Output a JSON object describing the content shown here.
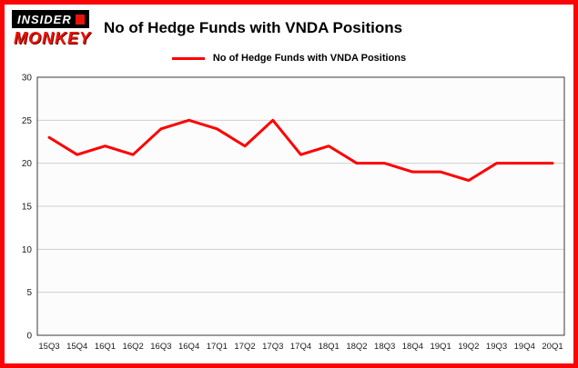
{
  "page": {
    "border_color": "#f90505",
    "background": "#ffffff"
  },
  "logo": {
    "line1": "INSIDER",
    "line2": "MONKEY",
    "bg_color": "#000000",
    "accent_color": "#e8140c",
    "monkey_color": "#ef1409"
  },
  "header": {
    "title": "No of Hedge Funds with VNDA Positions"
  },
  "legend": {
    "label": "No of Hedge Funds with VNDA Positions",
    "line_color": "#fe0000"
  },
  "chart_data": {
    "type": "line",
    "title": "No of Hedge Funds with VNDA Positions",
    "categories": [
      "15Q3",
      "15Q4",
      "16Q1",
      "16Q2",
      "16Q3",
      "16Q4",
      "17Q1",
      "17Q2",
      "17Q3",
      "17Q4",
      "18Q1",
      "18Q2",
      "18Q3",
      "18Q4",
      "19Q1",
      "19Q2",
      "19Q3",
      "19Q4",
      "20Q1"
    ],
    "series": [
      {
        "name": "No of Hedge Funds with VNDA Positions",
        "color": "#fe0000",
        "values": [
          23,
          21,
          22,
          21,
          24,
          25,
          24,
          22,
          25,
          21,
          22,
          20,
          20,
          19,
          19,
          18,
          20,
          20,
          20
        ]
      }
    ],
    "ylim": [
      0,
      30
    ],
    "yticks": [
      0,
      5,
      10,
      15,
      20,
      25,
      30
    ],
    "grid": true,
    "legend_position": "top",
    "grid_color": "#cfcfcf",
    "plot_bg": "#fcfcfc",
    "axis_color": "#3a3a3a",
    "tick_label_color": "#1a1a1a"
  }
}
